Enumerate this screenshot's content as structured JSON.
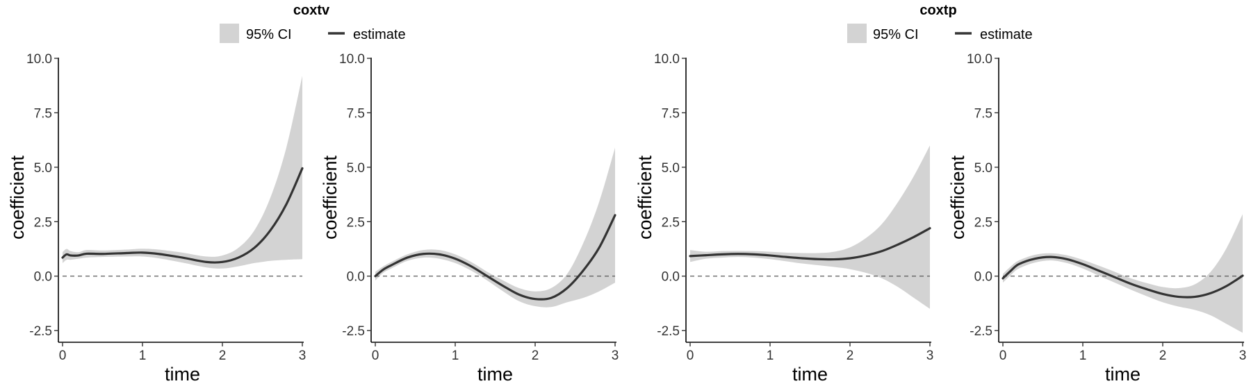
{
  "colors": {
    "ci_fill": "#d3d3d3",
    "estimate_line": "#333333",
    "zero_line": "#555555",
    "axis": "#000000"
  },
  "groups": [
    {
      "title": "coxtv",
      "legend": {
        "ci_label": "95% CI",
        "estimate_label": "estimate"
      }
    },
    {
      "title": "coxtp",
      "legend": {
        "ci_label": "95% CI",
        "estimate_label": "estimate"
      }
    }
  ],
  "chart_data": [
    {
      "type": "line",
      "group": "coxtv",
      "xlabel": "time",
      "ylabel": "coefficient",
      "xlim": [
        0,
        3
      ],
      "ylim": [
        -3.1,
        10.0
      ],
      "xticks": [
        "0",
        "1",
        "2",
        "3"
      ],
      "yticks": [
        "-2.5",
        "0.0",
        "2.5",
        "5.0",
        "7.5",
        "10.0"
      ],
      "reference_line": 0,
      "series": [
        {
          "name": "estimate",
          "x": [
            0,
            0.05,
            0.1,
            0.2,
            0.3,
            0.5,
            0.8,
            1.0,
            1.2,
            1.5,
            1.8,
            2.0,
            2.2,
            2.4,
            2.6,
            2.8,
            3.0
          ],
          "values": [
            0.85,
            1.0,
            0.95,
            0.95,
            1.03,
            1.02,
            1.06,
            1.08,
            1.02,
            0.85,
            0.65,
            0.65,
            0.85,
            1.3,
            2.1,
            3.3,
            4.95
          ]
        },
        {
          "name": "95% CI lower",
          "x": [
            0,
            0.05,
            0.1,
            0.2,
            0.3,
            0.5,
            0.8,
            1.0,
            1.2,
            1.5,
            1.8,
            2.0,
            2.2,
            2.4,
            2.6,
            2.8,
            3.0
          ],
          "values": [
            0.6,
            0.75,
            0.75,
            0.8,
            0.85,
            0.88,
            0.9,
            0.9,
            0.82,
            0.62,
            0.4,
            0.35,
            0.45,
            0.6,
            0.7,
            0.75,
            0.78
          ]
        },
        {
          "name": "95% CI upper",
          "x": [
            0,
            0.05,
            0.1,
            0.2,
            0.3,
            0.5,
            0.8,
            1.0,
            1.2,
            1.5,
            1.8,
            2.0,
            2.2,
            2.4,
            2.6,
            2.8,
            3.0
          ],
          "values": [
            1.1,
            1.25,
            1.15,
            1.1,
            1.2,
            1.18,
            1.22,
            1.26,
            1.22,
            1.08,
            0.9,
            0.95,
            1.3,
            2.1,
            3.6,
            5.9,
            9.2
          ]
        }
      ]
    },
    {
      "type": "line",
      "group": "coxtv",
      "xlabel": "time",
      "ylabel": "coefficient",
      "xlim": [
        0,
        3
      ],
      "ylim": [
        -3.1,
        10.0
      ],
      "xticks": [
        "0",
        "1",
        "2",
        "3"
      ],
      "yticks": [
        "-2.5",
        "0.0",
        "2.5",
        "5.0",
        "7.5",
        "10.0"
      ],
      "reference_line": 0,
      "series": [
        {
          "name": "estimate",
          "x": [
            0,
            0.1,
            0.2,
            0.4,
            0.6,
            0.8,
            1.0,
            1.2,
            1.4,
            1.6,
            1.8,
            2.0,
            2.2,
            2.4,
            2.6,
            2.8,
            3.0
          ],
          "values": [
            0.0,
            0.3,
            0.5,
            0.85,
            1.02,
            1.0,
            0.8,
            0.45,
            0.0,
            -0.45,
            -0.85,
            -1.05,
            -1.0,
            -0.55,
            0.25,
            1.3,
            2.8
          ]
        },
        {
          "name": "95% CI lower",
          "x": [
            0,
            0.1,
            0.2,
            0.4,
            0.6,
            0.8,
            1.0,
            1.2,
            1.4,
            1.6,
            1.8,
            2.0,
            2.2,
            2.4,
            2.6,
            2.8,
            3.0
          ],
          "values": [
            -0.2,
            0.15,
            0.35,
            0.7,
            0.85,
            0.8,
            0.6,
            0.25,
            -0.2,
            -0.7,
            -1.15,
            -1.38,
            -1.42,
            -1.2,
            -1.0,
            -0.7,
            -0.3
          ]
        },
        {
          "name": "95% CI upper",
          "x": [
            0,
            0.1,
            0.2,
            0.4,
            0.6,
            0.8,
            1.0,
            1.2,
            1.4,
            1.6,
            1.8,
            2.0,
            2.2,
            2.4,
            2.6,
            2.8,
            3.0
          ],
          "values": [
            0.2,
            0.45,
            0.65,
            1.0,
            1.2,
            1.2,
            1.0,
            0.65,
            0.2,
            -0.2,
            -0.55,
            -0.7,
            -0.55,
            0.1,
            1.5,
            3.4,
            5.9
          ]
        }
      ]
    },
    {
      "type": "line",
      "group": "coxtp",
      "xlabel": "time",
      "ylabel": "coefficient",
      "xlim": [
        0,
        3
      ],
      "ylim": [
        -3.1,
        10.0
      ],
      "xticks": [
        "0",
        "1",
        "2",
        "3"
      ],
      "yticks": [
        "-2.5",
        "0.0",
        "2.5",
        "5.0",
        "7.5",
        "10.0"
      ],
      "reference_line": 0,
      "series": [
        {
          "name": "estimate",
          "x": [
            0,
            0.2,
            0.4,
            0.6,
            0.8,
            1.0,
            1.2,
            1.4,
            1.6,
            1.8,
            2.0,
            2.2,
            2.4,
            2.6,
            2.8,
            3.0
          ],
          "values": [
            0.92,
            0.96,
            1.0,
            1.02,
            1.0,
            0.95,
            0.88,
            0.82,
            0.78,
            0.77,
            0.82,
            0.95,
            1.15,
            1.45,
            1.8,
            2.2
          ]
        },
        {
          "name": "95% CI lower",
          "x": [
            0,
            0.2,
            0.4,
            0.6,
            0.8,
            1.0,
            1.2,
            1.4,
            1.6,
            1.8,
            2.0,
            2.2,
            2.4,
            2.6,
            2.8,
            3.0
          ],
          "values": [
            0.65,
            0.8,
            0.85,
            0.88,
            0.85,
            0.78,
            0.68,
            0.58,
            0.5,
            0.42,
            0.32,
            0.15,
            -0.1,
            -0.5,
            -1.0,
            -1.5
          ]
        },
        {
          "name": "95% CI upper",
          "x": [
            0,
            0.2,
            0.4,
            0.6,
            0.8,
            1.0,
            1.2,
            1.4,
            1.6,
            1.8,
            2.0,
            2.2,
            2.4,
            2.6,
            2.8,
            3.0
          ],
          "values": [
            1.2,
            1.12,
            1.15,
            1.16,
            1.15,
            1.12,
            1.08,
            1.06,
            1.06,
            1.12,
            1.32,
            1.75,
            2.4,
            3.4,
            4.6,
            6.0
          ]
        }
      ]
    },
    {
      "type": "line",
      "group": "coxtp",
      "xlabel": "time",
      "ylabel": "coefficient",
      "xlim": [
        0,
        3
      ],
      "ylim": [
        -3.1,
        10.0
      ],
      "xticks": [
        "0",
        "1",
        "2",
        "3"
      ],
      "yticks": [
        "-2.5",
        "0.0",
        "2.5",
        "5.0",
        "7.5",
        "10.0"
      ],
      "reference_line": 0,
      "series": [
        {
          "name": "estimate",
          "x": [
            0,
            0.1,
            0.2,
            0.4,
            0.6,
            0.8,
            1.0,
            1.2,
            1.4,
            1.6,
            1.8,
            2.0,
            2.2,
            2.4,
            2.6,
            2.8,
            3.0
          ],
          "values": [
            -0.1,
            0.25,
            0.55,
            0.8,
            0.88,
            0.78,
            0.55,
            0.25,
            -0.05,
            -0.35,
            -0.6,
            -0.82,
            -0.95,
            -0.95,
            -0.78,
            -0.45,
            0.02
          ]
        },
        {
          "name": "95% CI lower",
          "x": [
            0,
            0.1,
            0.2,
            0.4,
            0.6,
            0.8,
            1.0,
            1.2,
            1.4,
            1.6,
            1.8,
            2.0,
            2.2,
            2.4,
            2.6,
            2.8,
            3.0
          ],
          "values": [
            -0.3,
            0.05,
            0.35,
            0.62,
            0.72,
            0.6,
            0.35,
            0.02,
            -0.3,
            -0.62,
            -0.92,
            -1.2,
            -1.4,
            -1.55,
            -1.8,
            -2.2,
            -2.6
          ]
        },
        {
          "name": "95% CI upper",
          "x": [
            0,
            0.1,
            0.2,
            0.4,
            0.6,
            0.8,
            1.0,
            1.2,
            1.4,
            1.6,
            1.8,
            2.0,
            2.2,
            2.4,
            2.6,
            2.8,
            3.0
          ],
          "values": [
            0.1,
            0.45,
            0.72,
            0.98,
            1.05,
            0.96,
            0.75,
            0.48,
            0.2,
            -0.1,
            -0.32,
            -0.5,
            -0.55,
            -0.38,
            0.2,
            1.3,
            2.85
          ]
        }
      ]
    }
  ]
}
